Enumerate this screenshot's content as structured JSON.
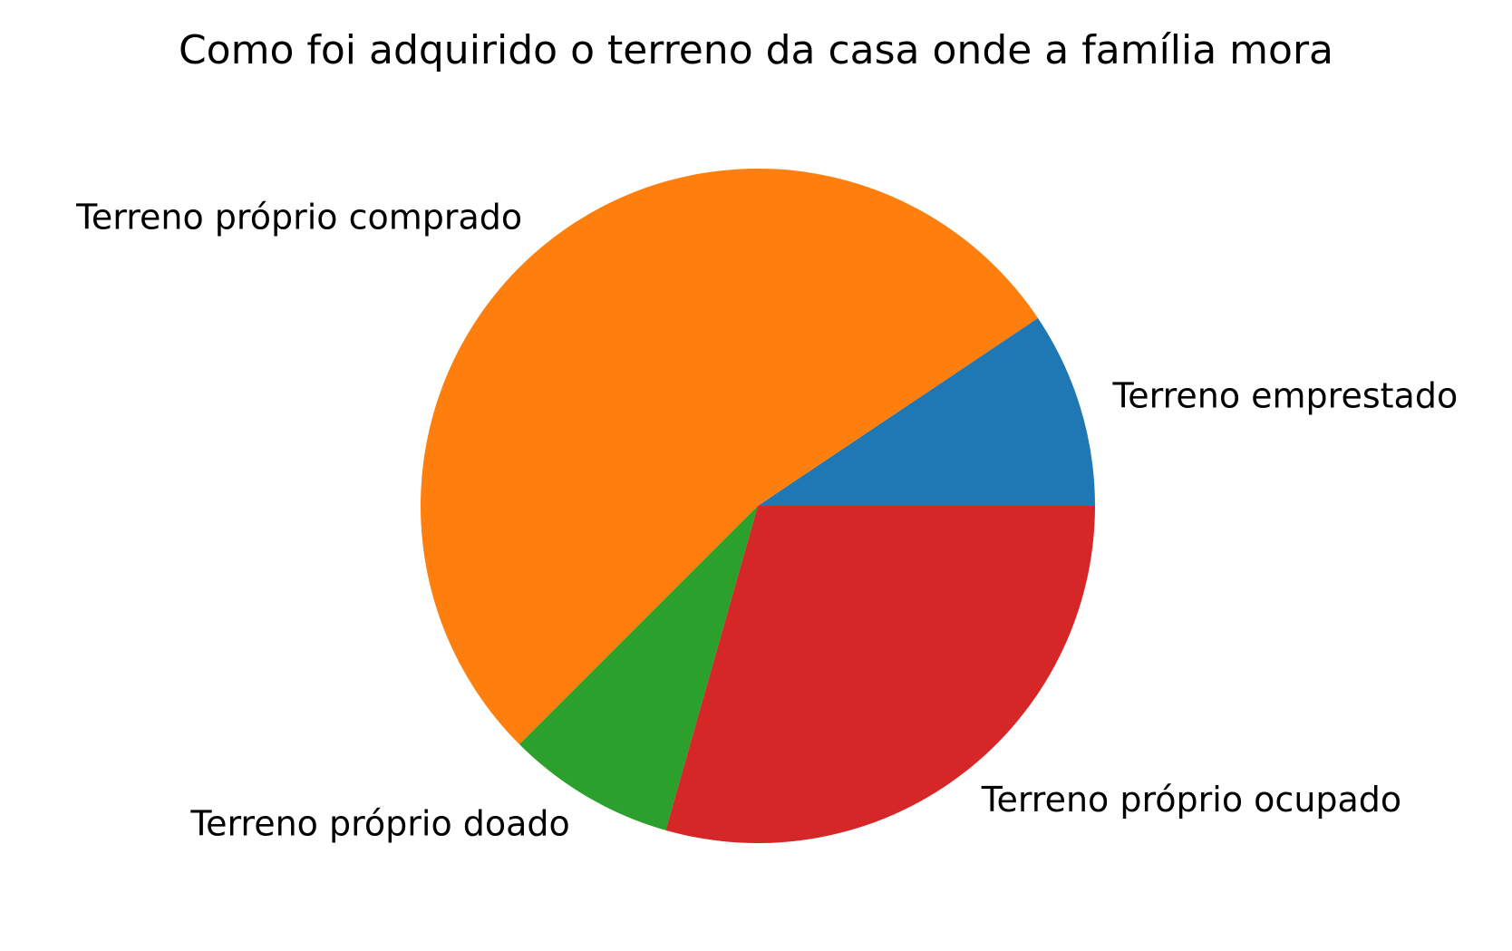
{
  "chart_data": {
    "type": "pie",
    "title": "Como foi adquirido o terreno da casa onde a família mora",
    "start_angle_deg": 0,
    "direction": "counterclockwise",
    "legend": "none",
    "slices": [
      {
        "label": "Terreno emprestado",
        "value": 9.4,
        "color": "#1f77b4"
      },
      {
        "label": "Terreno próprio comprado",
        "value": 53.1,
        "color": "#ff7f0e"
      },
      {
        "label": "Terreno próprio doado",
        "value": 8.1,
        "color": "#2ca02c"
      },
      {
        "label": "Terreno próprio ocupado",
        "value": 29.4,
        "color": "#d62728"
      }
    ]
  }
}
